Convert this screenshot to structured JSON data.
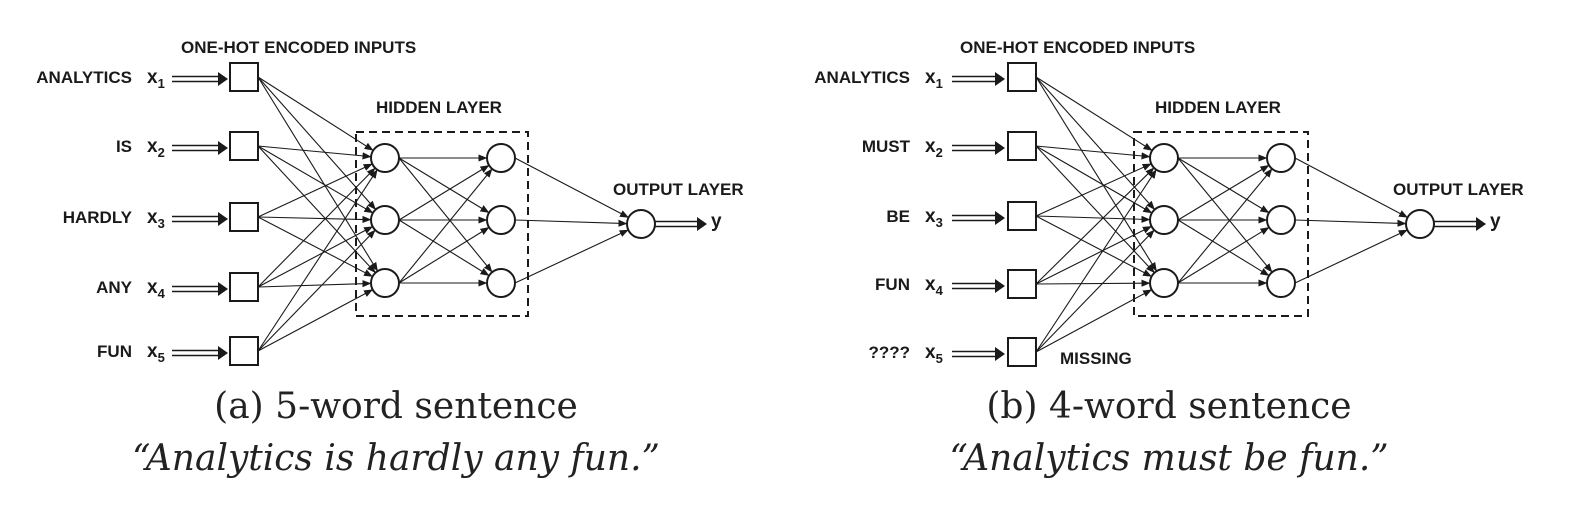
{
  "panels": [
    {
      "id": "a",
      "inputs_title": "ONE-HOT ENCODED  INPUTS",
      "hidden_title": "HIDDEN LAYER",
      "output_title": "OUTPUT LAYER",
      "output_var": "y",
      "words": [
        "ANALYTICS",
        "IS",
        "HARDLY",
        "ANY",
        "FUN"
      ],
      "vars": [
        "x1",
        "x2",
        "x3",
        "x4",
        "x5"
      ],
      "missing_note": "",
      "caption": "(a) 5-word sentence",
      "sentence": "“Analytics is hardly any fun.”"
    },
    {
      "id": "b",
      "inputs_title": "ONE-HOT ENCODED INPUTS",
      "hidden_title": "HIDDEN LAYER",
      "output_title": "OUTPUT LAYER",
      "output_var": "y",
      "words": [
        "ANALYTICS",
        "MUST",
        "BE",
        "FUN",
        "????"
      ],
      "vars": [
        "x1",
        "x2",
        "x3",
        "x4",
        "x5"
      ],
      "missing_note": "MISSING",
      "caption": "(b) 4-word sentence",
      "sentence": "“Analytics must be fun.”"
    }
  ]
}
